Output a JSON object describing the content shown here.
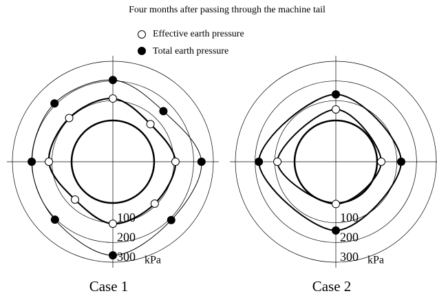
{
  "title": "Four months after passing through the machine tail",
  "chart_data": [
    {
      "type": "polar",
      "title": "Case 1",
      "rlim": [
        0,
        300
      ],
      "rticks": [
        100,
        200,
        300
      ],
      "r_unit": "kPa",
      "theta": [
        0,
        45,
        90,
        135,
        180,
        225,
        270,
        315
      ],
      "series": [
        {
          "name": "Effective earth pressure",
          "marker_fill": "#ffffff",
          "line_width": 2.2,
          "values": [
            111,
            60,
            108,
            91,
            105,
            62,
            115,
            104
          ]
        },
        {
          "name": "Total earth pressure",
          "marker_fill": "#000000",
          "line_width": 1,
          "values": [
            205,
            153,
            240,
            209,
            265,
            206,
            202,
            209
          ]
        }
      ]
    },
    {
      "type": "polar",
      "title": "Case 2",
      "rlim": [
        0,
        300
      ],
      "rticks": [
        100,
        200,
        300
      ],
      "r_unit": "kPa",
      "theta": [
        0,
        90,
        180,
        270
      ],
      "series": [
        {
          "marker_fill": "#ffffff",
          "line_width": 2,
          "values": [
            56,
            21,
            5,
            87
          ]
        },
        {
          "marker_fill": "#000000",
          "line_width": 2,
          "values": [
            132,
            122,
            139,
            181
          ]
        }
      ]
    }
  ]
}
